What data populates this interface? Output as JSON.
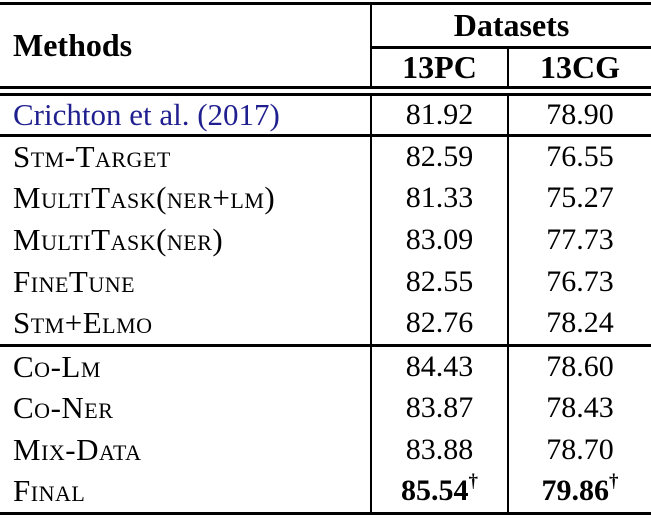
{
  "table": {
    "header": {
      "methods": "Methods",
      "datasets": "Datasets",
      "cols": [
        "13PC",
        "13CG"
      ]
    },
    "rows": [
      {
        "method": "Crichton et al. (2017)",
        "pc": "81.92",
        "cg": "78.90"
      },
      {
        "method": "Stm-Target",
        "pc": "82.59",
        "cg": "76.55"
      },
      {
        "method": "MultiTask(ner+lm)",
        "pc": "81.33",
        "cg": "75.27"
      },
      {
        "method": "MultiTask(ner)",
        "pc": "83.09",
        "cg": "77.73"
      },
      {
        "method": "FineTune",
        "pc": "82.55",
        "cg": "76.73"
      },
      {
        "method": "Stm+Elmo",
        "pc": "82.76",
        "cg": "78.24"
      },
      {
        "method": "Co-Lm",
        "pc": "84.43",
        "cg": "78.60"
      },
      {
        "method": "Co-Ner",
        "pc": "83.87",
        "cg": "78.43"
      },
      {
        "method": "Mix-Data",
        "pc": "83.88",
        "cg": "78.70"
      },
      {
        "method": "Final",
        "pc": "85.54",
        "cg": "79.86",
        "dagger": "†"
      }
    ],
    "colors": {
      "citation_link": "#1f1f8f",
      "text": "#000000",
      "rule": "#000000"
    }
  }
}
